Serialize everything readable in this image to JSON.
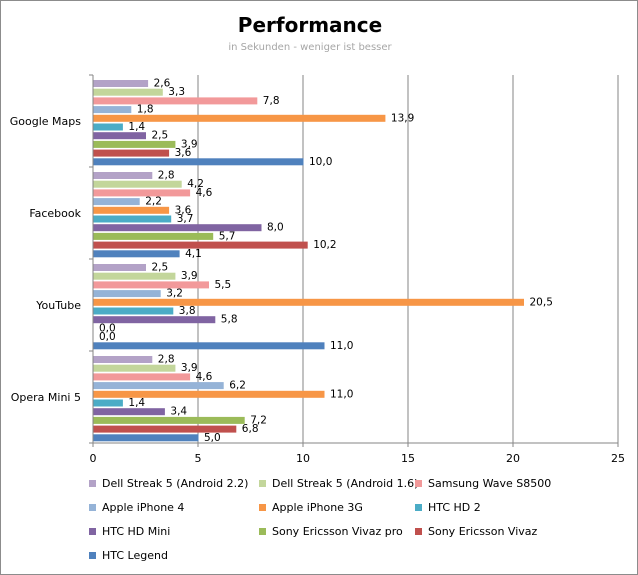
{
  "chart_data": {
    "type": "bar",
    "orientation": "horizontal",
    "title": "Performance",
    "subtitle": "in Sekunden - weniger ist besser",
    "categories": [
      "Google Maps",
      "Facebook",
      "YouTube",
      "Opera Mini 5"
    ],
    "xlim": [
      0,
      25
    ],
    "xticks": [
      "0",
      "5",
      "10",
      "15",
      "20",
      "25"
    ],
    "grid": true,
    "legend_position": "bottom",
    "series": [
      {
        "name": "Dell Streak 5 (Android 2.2)",
        "color": "#b3a2c7",
        "values": [
          2.6,
          2.8,
          2.5,
          2.8
        ],
        "labels": [
          "2,6",
          "2,8",
          "2,5",
          "2,8"
        ]
      },
      {
        "name": "Dell Streak 5 (Android 1.6)",
        "color": "#c3d69b",
        "values": [
          3.3,
          4.2,
          3.9,
          3.9
        ],
        "labels": [
          "3,3",
          "4,2",
          "3,9",
          "3,9"
        ]
      },
      {
        "name": "Samsung Wave S8500",
        "color": "#f2999a",
        "values": [
          7.8,
          4.6,
          5.5,
          4.6
        ],
        "labels": [
          "7,8",
          "4,6",
          "5,5",
          "4,6"
        ]
      },
      {
        "name": "Apple iPhone 4",
        "color": "#95b3d7",
        "values": [
          1.8,
          2.2,
          3.2,
          6.2
        ],
        "labels": [
          "1,8",
          "2,2",
          "3,2",
          "6,2"
        ]
      },
      {
        "name": "Apple iPhone 3G",
        "color": "#f79646",
        "values": [
          13.9,
          3.6,
          20.5,
          11.0
        ],
        "labels": [
          "13,9",
          "3,6",
          "20,5",
          "11,0"
        ]
      },
      {
        "name": "HTC HD 2",
        "color": "#4bacc6",
        "values": [
          1.4,
          3.7,
          3.8,
          1.4
        ],
        "labels": [
          "1,4",
          "3,7",
          "3,8",
          "1,4"
        ]
      },
      {
        "name": "HTC HD Mini",
        "color": "#8064a2",
        "values": [
          2.5,
          8.0,
          5.8,
          3.4
        ],
        "labels": [
          "2,5",
          "8,0",
          "5,8",
          "3,4"
        ]
      },
      {
        "name": "Sony Ericsson Vivaz pro",
        "color": "#9bbb59",
        "values": [
          3.9,
          5.7,
          0.0,
          7.2
        ],
        "labels": [
          "3,9",
          "5,7",
          "0,0",
          "7,2"
        ]
      },
      {
        "name": "Sony Ericsson Vivaz",
        "color": "#c0504d",
        "values": [
          3.6,
          10.2,
          0.0,
          6.8
        ],
        "labels": [
          "3,6",
          "10,2",
          "0,0",
          "6,8"
        ]
      },
      {
        "name": "HTC Legend",
        "color": "#4f81bd",
        "values": [
          10.0,
          4.1,
          11.0,
          5.0
        ],
        "labels": [
          "10,0",
          "4,1",
          "11,0",
          "5,0"
        ]
      }
    ]
  }
}
